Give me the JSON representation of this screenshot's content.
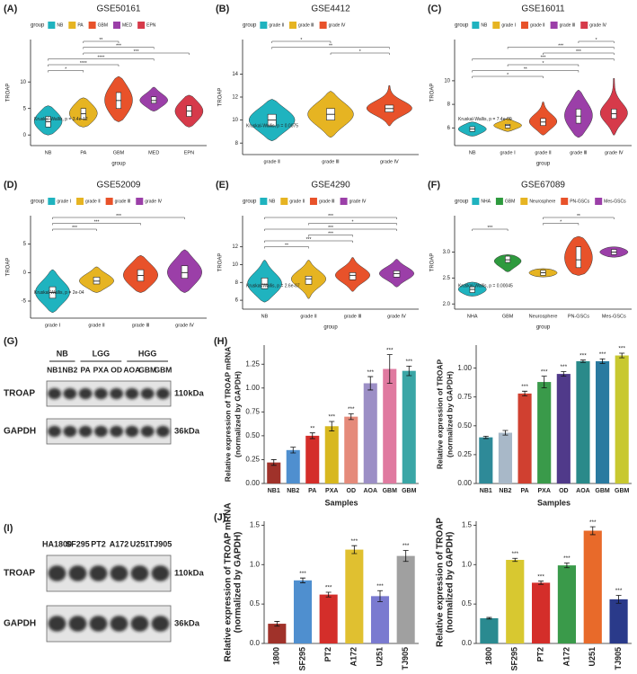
{
  "chart_data": [
    {
      "type": "violin",
      "panel": "(A)",
      "title": "GSE50161",
      "legend_title": "group",
      "ylabel": "TROAP",
      "xlabel": "group",
      "categories": [
        "NB",
        "PA",
        "GBM",
        "MED",
        "EPN"
      ],
      "colors": [
        "#1fb3bf",
        "#e6b422",
        "#e8522a",
        "#9b3fa8",
        "#d63a4a"
      ],
      "stats": {
        "median": [
          2.5,
          4,
          6.5,
          6.5,
          4.5
        ],
        "q1": [
          1.5,
          3,
          5,
          6,
          3.5
        ],
        "q3": [
          3.5,
          5,
          8,
          7.2,
          5.5
        ],
        "min": [
          0,
          1.5,
          2.5,
          4.5,
          1.5
        ],
        "max": [
          5.5,
          7,
          11,
          9,
          7.5
        ]
      },
      "ylim": [
        -2,
        18
      ],
      "yticks": [
        0,
        5,
        10
      ],
      "note": "Kruskal-Wallis, p = 3.4e-12",
      "comparisons": [
        {
          "from": "NB",
          "to": "PA",
          "label": "*"
        },
        {
          "from": "NB",
          "to": "GBM",
          "label": "****"
        },
        {
          "from": "NB",
          "to": "MED",
          "label": "****"
        },
        {
          "from": "PA",
          "to": "EPN",
          "label": "***"
        },
        {
          "from": "PA",
          "to": "MED",
          "label": "***"
        },
        {
          "from": "PA",
          "to": "GBM",
          "label": "**"
        }
      ]
    },
    {
      "type": "violin",
      "panel": "(B)",
      "title": "GSE4412",
      "legend_title": "group",
      "ylabel": "TROAP",
      "categories": [
        "grade Ⅱ",
        "grade Ⅲ",
        "grade Ⅳ"
      ],
      "colors": [
        "#1fb3bf",
        "#e6b422",
        "#e8522a"
      ],
      "stats": {
        "median": [
          10,
          10.5,
          11
        ],
        "q1": [
          9.5,
          10,
          10.7
        ],
        "q3": [
          10.5,
          11,
          11.3
        ],
        "min": [
          8.2,
          8.5,
          9.5
        ],
        "max": [
          11.8,
          12.5,
          13
        ]
      },
      "ylim": [
        7,
        17
      ],
      "yticks": [
        8,
        10,
        12,
        14
      ],
      "note": "Kruskal-Wallis, p = 0.0075",
      "comparisons": [
        {
          "from": "grade Ⅲ",
          "to": "grade Ⅳ",
          "label": "*"
        },
        {
          "from": "grade Ⅱ",
          "to": "grade Ⅳ",
          "label": "**"
        },
        {
          "from": "grade Ⅱ",
          "to": "grade Ⅲ",
          "label": "*"
        }
      ]
    },
    {
      "type": "violin",
      "panel": "(C)",
      "title": "GSE16011",
      "legend_title": "group",
      "ylabel": "TROAP",
      "xlabel": "group",
      "categories": [
        "NB",
        "grade Ⅰ",
        "grade Ⅱ",
        "grade Ⅲ",
        "grade Ⅳ"
      ],
      "colors": [
        "#1fb3bf",
        "#e6b422",
        "#e8522a",
        "#9b3fa8",
        "#d63a4a"
      ],
      "stats": {
        "median": [
          5.9,
          6.2,
          6.5,
          7.0,
          7.2
        ],
        "q1": [
          5.7,
          6.0,
          6.2,
          6.4,
          6.8
        ],
        "q3": [
          6.1,
          6.3,
          6.8,
          7.6,
          7.6
        ],
        "min": [
          5.3,
          5.7,
          5.4,
          5.2,
          5.4
        ],
        "max": [
          6.5,
          6.8,
          8.2,
          9.2,
          10.2
        ]
      },
      "ylim": [
        4.5,
        13.5
      ],
      "yticks": [
        6,
        8,
        10
      ],
      "note": "Kruskal-Wallis, p = 7.4e-09",
      "comparisons": [
        {
          "from": "NB",
          "to": "grade Ⅱ",
          "label": "*"
        },
        {
          "from": "NB",
          "to": "grade Ⅲ",
          "label": "**"
        },
        {
          "from": "grade Ⅰ",
          "to": "grade Ⅲ",
          "label": "*"
        },
        {
          "from": "NB",
          "to": "grade Ⅳ",
          "label": "***"
        },
        {
          "from": "grade Ⅱ",
          "to": "grade Ⅳ",
          "label": "***"
        },
        {
          "from": "grade Ⅰ",
          "to": "grade Ⅳ",
          "label": "***"
        },
        {
          "from": "grade Ⅲ",
          "to": "grade Ⅳ",
          "label": "*"
        }
      ]
    },
    {
      "type": "violin",
      "panel": "(D)",
      "title": "GSE52009",
      "legend_title": "group",
      "ylabel": "TROAP",
      "categories": [
        "grade Ⅰ",
        "grade Ⅱ",
        "grade Ⅲ",
        "grade Ⅳ"
      ],
      "colors": [
        "#1fb3bf",
        "#e6b422",
        "#e8522a",
        "#9b3fa8"
      ],
      "stats": {
        "median": [
          -3.5,
          -1.5,
          -0.5,
          0
        ],
        "q1": [
          -4.5,
          -2,
          -1.5,
          -1
        ],
        "q3": [
          -2.5,
          -0.8,
          0.5,
          1.2
        ],
        "min": [
          -7,
          -3.5,
          -3.5,
          -3.5
        ],
        "max": [
          0.5,
          1,
          3,
          4
        ]
      },
      "ylim": [
        -8,
        10
      ],
      "yticks": [
        -5,
        0,
        5
      ],
      "note": "Kruskal-Wallis, p = 2e-04",
      "comparisons": [
        {
          "from": "grade Ⅰ",
          "to": "grade Ⅱ",
          "label": "***"
        },
        {
          "from": "grade Ⅰ",
          "to": "grade Ⅲ",
          "label": "***"
        },
        {
          "from": "grade Ⅰ",
          "to": "grade Ⅳ",
          "label": "***"
        }
      ]
    },
    {
      "type": "violin",
      "panel": "(E)",
      "title": "GSE4290",
      "legend_title": "group",
      "ylabel": "TROAP",
      "xlabel": "group",
      "categories": [
        "NB",
        "grade Ⅱ",
        "grade Ⅲ",
        "grade Ⅳ"
      ],
      "colors": [
        "#1fb3bf",
        "#e6b422",
        "#e8522a",
        "#9b3fa8"
      ],
      "stats": {
        "median": [
          7.8,
          8.4,
          8.8,
          9.0
        ],
        "q1": [
          7.3,
          7.8,
          8.3,
          8.6
        ],
        "q3": [
          8.5,
          8.7,
          9.1,
          9.3
        ],
        "min": [
          5.8,
          6.2,
          7.0,
          7.5
        ],
        "max": [
          10.5,
          10.5,
          10.8,
          10.6
        ]
      },
      "ylim": [
        5,
        15.5
      ],
      "yticks": [
        6,
        8,
        10,
        12
      ],
      "note": "Kruskal-Wallis, p = 2.6e-07",
      "comparisons": [
        {
          "from": "NB",
          "to": "grade Ⅱ",
          "label": "**"
        },
        {
          "from": "NB",
          "to": "grade Ⅲ",
          "label": "***"
        },
        {
          "from": "grade Ⅱ",
          "to": "grade Ⅲ",
          "label": "***"
        },
        {
          "from": "NB",
          "to": "grade Ⅳ",
          "label": "***"
        },
        {
          "from": "grade Ⅱ",
          "to": "grade Ⅳ",
          "label": "*"
        },
        {
          "from": "NB",
          "to": "grade Ⅳ",
          "label": "***"
        }
      ]
    },
    {
      "type": "violin",
      "panel": "(F)",
      "title": "GSE67089",
      "legend_title": "group",
      "ylabel": "TROAP",
      "xlabel": "group",
      "categories": [
        "NHA",
        "GBM",
        "Neurosphere",
        "PN-GSCs",
        "Mes-GSCs"
      ],
      "colors": [
        "#1fb3bf",
        "#2e9a3e",
        "#e6b422",
        "#e8522a",
        "#9b3fa8"
      ],
      "stats": {
        "median": [
          2.28,
          2.85,
          2.6,
          2.85,
          3.0
        ],
        "q1": [
          2.22,
          2.8,
          2.55,
          2.7,
          2.95
        ],
        "q3": [
          2.33,
          2.92,
          2.65,
          3.1,
          3.05
        ],
        "min": [
          2.15,
          2.62,
          2.52,
          2.55,
          2.9
        ],
        "max": [
          2.42,
          2.95,
          2.68,
          3.3,
          3.1
        ]
      },
      "ylim": [
        1.9,
        3.7
      ],
      "yticks": [
        {
          "value": 2,
          "label": "2.0"
        },
        2.5,
        {
          "value": 3,
          "label": "3.0"
        }
      ],
      "note": "Kruskal-Wallis, p = 0.00045",
      "comparisons": [
        {
          "from": "NHA",
          "to": "GBM",
          "label": "***"
        },
        {
          "from": "Neurosphere",
          "to": "PN-GSCs",
          "label": "*"
        },
        {
          "from": "Neurosphere",
          "to": "Mes-GSCs",
          "label": "**"
        }
      ]
    },
    {
      "type": "bar",
      "panel": "(H)",
      "ylabel": [
        "Relative expression of TROAP mRNA",
        "(normalized by GAPDH)"
      ],
      "xlabel": "Samples",
      "categories": [
        "NB1",
        "NB2",
        "PA",
        "PXA",
        "OD",
        "AOA",
        "GBM",
        "GBM"
      ],
      "values": [
        0.22,
        0.35,
        0.5,
        0.6,
        0.7,
        1.05,
        1.2,
        1.18
      ],
      "errors": [
        0.03,
        0.03,
        0.03,
        0.05,
        0.03,
        0.07,
        0.15,
        0.05
      ],
      "annotations": [
        null,
        null,
        "**",
        "***",
        "***",
        "***",
        "***",
        "***"
      ],
      "colors": [
        "#a0322a",
        "#4f8fcf",
        "#d42e2a",
        "#d8b81f",
        "#e58a7a",
        "#9c8fc6",
        "#e07aa0",
        "#3aa6a6"
      ],
      "ylim": [
        0,
        1.45
      ],
      "yticks": [
        {
          "value": 0,
          "label": "0.00"
        },
        0.25,
        {
          "value": 0.5,
          "label": "0.50"
        },
        0.75,
        {
          "value": 1,
          "label": "1.00"
        },
        1.25
      ]
    },
    {
      "type": "bar",
      "ylabel": [
        "Relative expression of TROAP",
        "(normalized by GAPDH)"
      ],
      "xlabel": "Samples",
      "categories": [
        "NB1",
        "NB2",
        "PA",
        "PXA",
        "OD",
        "AOA",
        "GBM",
        "GBM"
      ],
      "values": [
        0.4,
        0.44,
        0.78,
        0.88,
        0.95,
        1.06,
        1.06,
        1.11
      ],
      "errors": [
        0.01,
        0.02,
        0.02,
        0.05,
        0.02,
        0.01,
        0.02,
        0.02
      ],
      "annotations": [
        null,
        null,
        "***",
        "***",
        "***",
        "***",
        "***",
        "***"
      ],
      "colors": [
        "#2e8a98",
        "#a8b8c8",
        "#d04030",
        "#3a9a4a",
        "#503a8a",
        "#2a8a8a",
        "#2a7aa0",
        "#c8c830"
      ],
      "ylim": [
        0,
        1.2
      ],
      "yticks": [
        {
          "value": 0,
          "label": "0.00"
        },
        0.25,
        {
          "value": 0.5,
          "label": "0.50"
        },
        0.75,
        {
          "value": 1,
          "label": "1.00"
        }
      ]
    },
    {
      "type": "bar",
      "panel": "(J)",
      "ylabel": [
        "Relative expression of TROAP mRNA",
        "(normalized by GAPDH)"
      ],
      "categories": [
        "1800",
        "SF295",
        "PT2",
        "A172",
        "U251",
        "TJ905"
      ],
      "values": [
        0.25,
        0.8,
        0.62,
        1.19,
        0.6,
        1.11
      ],
      "errors": [
        0.03,
        0.03,
        0.03,
        0.05,
        0.07,
        0.07
      ],
      "annotations": [
        null,
        "***",
        "***",
        "***",
        "***",
        "***"
      ],
      "colors": [
        "#a0322a",
        "#4f8fcf",
        "#d42e2a",
        "#e0c030",
        "#7a7ad0",
        "#a0a0a0"
      ],
      "ylim": [
        0,
        1.55
      ],
      "yticks": [
        {
          "value": 0,
          "label": "0.0"
        },
        0.5,
        {
          "value": 1,
          "label": "1.0"
        },
        1.5
      ]
    },
    {
      "type": "bar",
      "ylabel": [
        "Relative expression of TROAP",
        "(normalized by GAPDH)"
      ],
      "categories": [
        "1800",
        "SF295",
        "PT2",
        "A172",
        "U251",
        "TJ905"
      ],
      "values": [
        0.32,
        1.06,
        0.77,
        0.99,
        1.43,
        0.56
      ],
      "errors": [
        0.01,
        0.02,
        0.02,
        0.03,
        0.05,
        0.05
      ],
      "annotations": [
        null,
        "***",
        "***",
        "***",
        "***",
        "***"
      ],
      "colors": [
        "#2a8a90",
        "#d8c830",
        "#d42e2a",
        "#3a9a4a",
        "#e86a2a",
        "#2a3a8a"
      ],
      "ylim": [
        0,
        1.55
      ],
      "yticks": [
        {
          "value": 0,
          "label": "0.0"
        },
        0.5,
        {
          "value": 1,
          "label": "1.0"
        },
        1.5
      ]
    }
  ],
  "blots": [
    {
      "panel": "(G)",
      "groups": [
        {
          "name": "NB",
          "lanes": [
            "NB1",
            "NB2"
          ]
        },
        {
          "name": "LGG",
          "lanes": [
            "PA",
            "PXA",
            "OD"
          ]
        },
        {
          "name": "HGG",
          "lanes": [
            "AOA",
            "GBM",
            "GBM"
          ]
        }
      ],
      "rows": [
        {
          "name": "TROAP",
          "size": "110kDa"
        },
        {
          "name": "GAPDH",
          "size": "36kDa"
        }
      ]
    },
    {
      "panel": "(I)",
      "lanes": [
        "HA1800",
        "SF295",
        "PT2",
        "A172",
        "U251",
        "TJ905"
      ],
      "rows": [
        {
          "name": "TROAP",
          "size": "110kDa"
        },
        {
          "name": "GAPDH",
          "size": "36kDa"
        }
      ]
    }
  ]
}
